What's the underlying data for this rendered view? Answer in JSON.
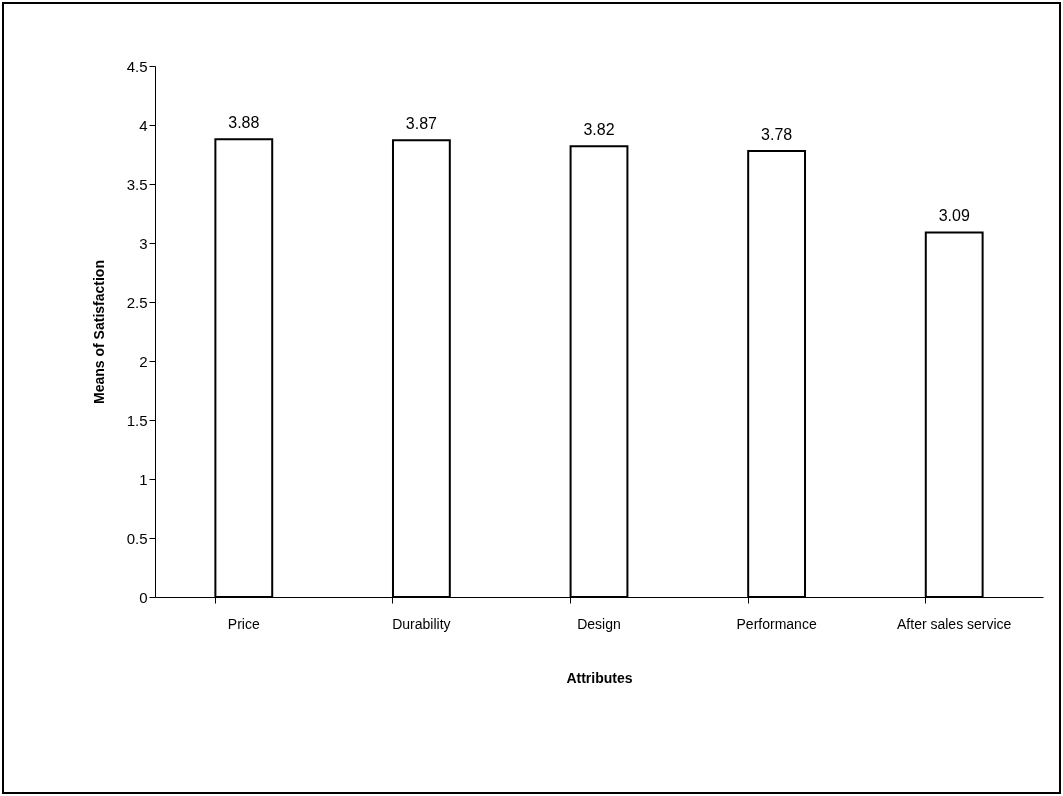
{
  "chart_data": {
    "type": "bar",
    "xlabel": "Attributes",
    "ylabel": "Means of Satisfaction",
    "categories": [
      "Price",
      "Durability",
      "Design",
      "Performance",
      "After sales service"
    ],
    "values": [
      3.88,
      3.87,
      3.82,
      3.78,
      3.09
    ],
    "colors": [
      "#ffffff",
      "#ffffff",
      "#ffffff",
      "#ffffff",
      "#ffffff"
    ],
    "ylim": [
      0,
      4.5
    ],
    "yticks": [
      0,
      0.5,
      1,
      1.5,
      2,
      2.5,
      3,
      3.5,
      4,
      4.5
    ],
    "data_labels": true
  }
}
